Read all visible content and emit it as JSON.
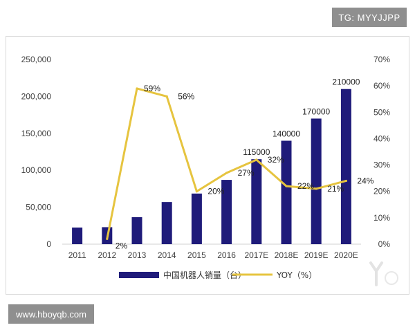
{
  "watermarks": {
    "top": "TG: MYYJJPP",
    "bottom": "www.hboyqb.com"
  },
  "colors": {
    "bar": "#1f1b7a",
    "line": "#e6c43f",
    "axis_text": "#404040",
    "watermark_bg": "#8f8f8f"
  },
  "chart_data": {
    "type": "bar",
    "title": "",
    "xlabel": "",
    "ylabel": "",
    "categories": [
      "2011",
      "2012",
      "2013",
      "2014",
      "2015",
      "2016",
      "2017E",
      "2018E",
      "2019E",
      "2020E"
    ],
    "ylim": [
      0,
      250000
    ],
    "y_ticks": [
      "0",
      "50,000",
      "100,000",
      "150,000",
      "200,000",
      "250,000"
    ],
    "y2lim": [
      0,
      70
    ],
    "y2_ticks": [
      "0%",
      "10%",
      "20%",
      "30%",
      "40%",
      "50%",
      "60%",
      "70%"
    ],
    "grid": false,
    "legend_position": "bottom",
    "series": [
      {
        "name": "中国机器人销量（台）",
        "type": "bar",
        "axis": "left",
        "values": [
          22500,
          23000,
          36500,
          57000,
          68500,
          87000,
          115000,
          140000,
          170000,
          210000
        ],
        "labels": [
          "",
          "",
          "",
          "",
          "",
          "",
          "115000",
          "140000",
          "170000",
          "210000"
        ]
      },
      {
        "name": "YOY（%）",
        "type": "line",
        "axis": "right",
        "values": [
          null,
          2,
          59,
          56,
          20,
          27,
          32,
          22,
          21,
          24
        ],
        "labels": [
          "",
          "2%",
          "59%",
          "56%",
          "20%",
          "27%",
          "32%",
          "22%",
          "21%",
          "24%"
        ]
      }
    ]
  }
}
